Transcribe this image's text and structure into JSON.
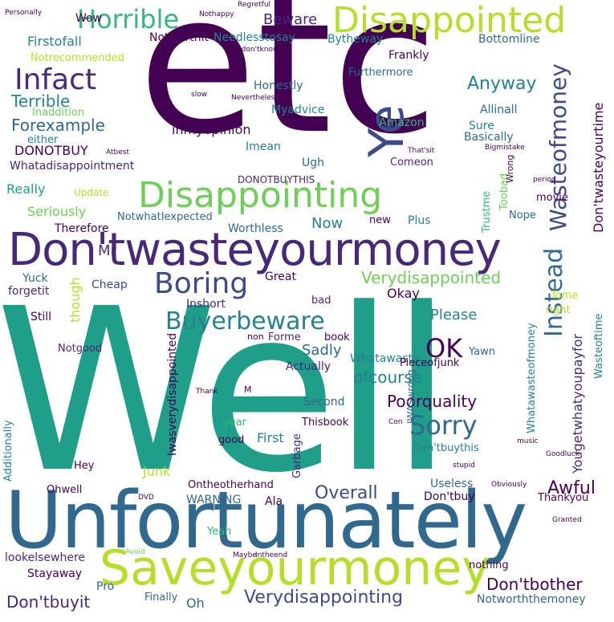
{
  "palette": {
    "dark_purple": "#440154",
    "indigo": "#482878",
    "blue": "#3e4a89",
    "steel": "#31688e",
    "teal": "#26828e",
    "green_teal": "#1f9e89",
    "green": "#35b779",
    "light_green": "#6ece58",
    "lime": "#b5de2b",
    "yellow": "#fde725",
    "background": "#ffffff"
  },
  "words": [
    {
      "text": "etc"
    },
    {
      "text": "Well"
    },
    {
      "text": "Unfortunately"
    },
    {
      "text": "Don'twasteyourmoney"
    },
    {
      "text": "Saveyourmoney"
    },
    {
      "text": "Disappointing"
    },
    {
      "text": "Disappointed"
    },
    {
      "text": "Ye"
    },
    {
      "text": "Infact"
    },
    {
      "text": "Horrible"
    },
    {
      "text": "Boring"
    },
    {
      "text": "Buyerbeware"
    },
    {
      "text": "Wasteofmoney"
    },
    {
      "text": "Instead"
    },
    {
      "text": "Sorry"
    },
    {
      "text": "OK"
    },
    {
      "text": "Terrible"
    },
    {
      "text": "Forexample"
    },
    {
      "text": "Verydisappointed"
    },
    {
      "text": "Overall"
    },
    {
      "text": "Verydisappointing"
    },
    {
      "text": "Don'tbuyit"
    },
    {
      "text": "Don'tbother"
    },
    {
      "text": "Awful"
    },
    {
      "text": "Poorquality"
    },
    {
      "text": "Anyway"
    },
    {
      "text": "Beware"
    },
    {
      "text": "Wow"
    },
    {
      "text": "Firstofall"
    },
    {
      "text": "Notworthit"
    },
    {
      "text": "Needlesstosay"
    },
    {
      "text": "Bytheway"
    },
    {
      "text": "Bottomline"
    },
    {
      "text": "Frankly"
    },
    {
      "text": "Notrecommended"
    },
    {
      "text": "Honestly"
    },
    {
      "text": "Furthermore"
    },
    {
      "text": "Myadvice"
    },
    {
      "text": "inmyopinion"
    },
    {
      "text": "Imean"
    },
    {
      "text": "Amazon"
    },
    {
      "text": "Allinall"
    },
    {
      "text": "Sure"
    },
    {
      "text": "Basically"
    },
    {
      "text": "Inaddition"
    },
    {
      "text": "DONOTBUY"
    },
    {
      "text": "Whatadisappointment"
    },
    {
      "text": "Ugh"
    },
    {
      "text": "Comeon"
    },
    {
      "text": "Really"
    },
    {
      "text": "Update"
    },
    {
      "text": "DONOTBUYTHIS"
    },
    {
      "text": "Seriously"
    },
    {
      "text": "NotwhatIexpected"
    },
    {
      "text": "Therefore"
    },
    {
      "text": "Worthless"
    },
    {
      "text": "Now"
    },
    {
      "text": "Plus"
    },
    {
      "text": "new"
    },
    {
      "text": "Nope"
    },
    {
      "text": "Toobad"
    },
    {
      "text": "Trustme"
    },
    {
      "text": "movie"
    },
    {
      "text": "Don'twasteyourtime"
    },
    {
      "text": "Mr"
    },
    {
      "text": "Great"
    },
    {
      "text": "Okay"
    },
    {
      "text": "Please"
    },
    {
      "text": "Cheap"
    },
    {
      "text": "Yuck"
    },
    {
      "text": "forgetit"
    },
    {
      "text": "Inshort"
    },
    {
      "text": "Still"
    },
    {
      "text": "though"
    },
    {
      "text": "bad"
    },
    {
      "text": "Notgood"
    },
    {
      "text": "Sadly"
    },
    {
      "text": "Actually"
    },
    {
      "text": "Whatawaste"
    },
    {
      "text": "ofcourse"
    },
    {
      "text": "Second"
    },
    {
      "text": "Pieceofjunk"
    },
    {
      "text": "book"
    },
    {
      "text": "Forme"
    },
    {
      "text": "Yawn"
    },
    {
      "text": "Tome"
    },
    {
      "text": "right"
    },
    {
      "text": "Yougetwhatyoupayfor"
    },
    {
      "text": "Wasteoftime"
    },
    {
      "text": "Iwasverydisappointed"
    },
    {
      "text": "Whatawasteofmoney"
    },
    {
      "text": "IWASwrong"
    },
    {
      "text": "First"
    },
    {
      "text": "Thisbook"
    },
    {
      "text": "year"
    },
    {
      "text": "good"
    },
    {
      "text": "Don'tbuythis"
    },
    {
      "text": "Junk"
    },
    {
      "text": "Hey"
    },
    {
      "text": "Additionally"
    },
    {
      "text": "Ohwell"
    },
    {
      "text": "Ontheotherhand"
    },
    {
      "text": "WARNING"
    },
    {
      "text": "Ala"
    },
    {
      "text": "Garbage"
    },
    {
      "text": "Useless"
    },
    {
      "text": "Don'tbuy"
    },
    {
      "text": "Thankyou"
    },
    {
      "text": "Yeah"
    },
    {
      "text": "lookelsewhere"
    },
    {
      "text": "Stayaway"
    },
    {
      "text": "Pro"
    },
    {
      "text": "Finally"
    },
    {
      "text": "Oh"
    },
    {
      "text": "nothing"
    },
    {
      "text": "Notworththemoney"
    },
    {
      "text": "Personally"
    },
    {
      "text": "Nothappy"
    },
    {
      "text": "Regretful"
    },
    {
      "text": "Idon'tknow"
    },
    {
      "text": "either"
    },
    {
      "text": "slow"
    },
    {
      "text": "Nevertheless"
    },
    {
      "text": "Atbest"
    },
    {
      "text": "period"
    },
    {
      "text": "Wrong"
    },
    {
      "text": "Bigmistake"
    },
    {
      "text": "That'sit"
    },
    {
      "text": "Granted"
    },
    {
      "text": "non"
    },
    {
      "text": "Thank"
    },
    {
      "text": "M"
    },
    {
      "text": "Con"
    },
    {
      "text": "stupid"
    },
    {
      "text": "Goodluck"
    },
    {
      "text": "music"
    },
    {
      "text": "DVD"
    },
    {
      "text": "Avoid"
    },
    {
      "text": "Maybe"
    },
    {
      "text": "Intheend"
    },
    {
      "text": "Obviously"
    }
  ]
}
